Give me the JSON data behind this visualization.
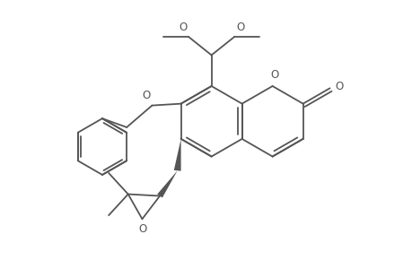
{
  "background_color": "#ffffff",
  "line_color": "#555555",
  "line_width": 1.3,
  "figsize": [
    4.6,
    3.0
  ],
  "dpi": 100,
  "xlim": [
    0,
    9.2
  ],
  "ylim": [
    0,
    6.0
  ]
}
